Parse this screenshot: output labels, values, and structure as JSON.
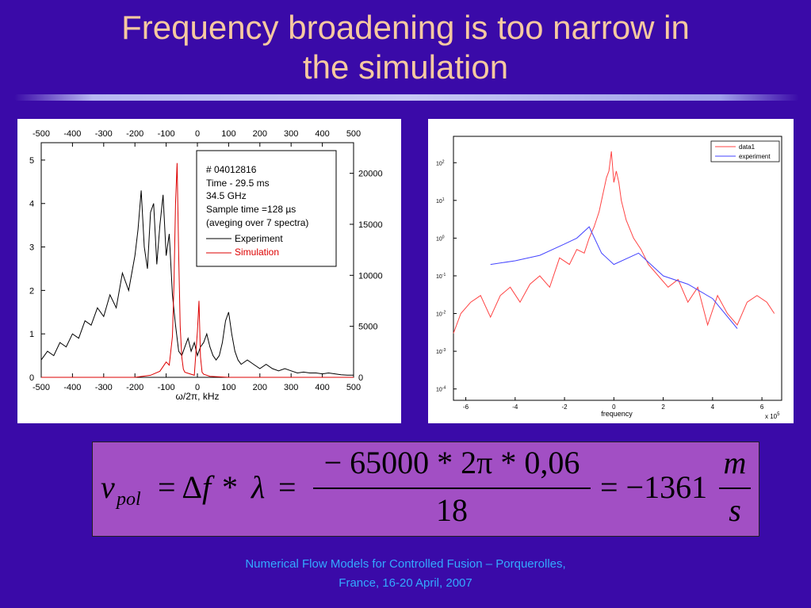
{
  "slide": {
    "title_line1": "Frequency broadening is too narrow in",
    "title_line2": "the simulation",
    "footer_line1": "Numerical Flow Models for Controlled Fusion – Porquerolles,",
    "footer_line2": "France, 16-20 April,  2007",
    "colors": {
      "background": "#3a0aa8",
      "title": "#f7c9a0",
      "footer": "#33aaff",
      "formula_box": "#a24fc4"
    }
  },
  "left_plot": {
    "legend_lines": [
      "# 04012816",
      "Time - 29.5 ms",
      "34.5 GHz",
      "Sample time =128 µs",
      "(aveging over 7 spectra)"
    ],
    "legend_experiment": "Experiment",
    "legend_simulation": "Simulation",
    "xlabel": "ω/2π, kHz"
  },
  "right_plot": {
    "legend_data1": "data1",
    "legend_experiment": "experiment",
    "xlabel": "frequency",
    "x_multiplier": "x 10",
    "x_multiplier_exp": "5"
  },
  "formula": {
    "v": "v",
    "pol": "pol",
    "eq1": "= Δ",
    "f": "f",
    "star1": " * ",
    "lambda": "λ",
    "eq2": "=",
    "numerator": "− 65000 * 2π * 0,06",
    "denominator": "18",
    "eq3": "= −1361",
    "m": "m",
    "s": "s"
  },
  "chart_data": [
    {
      "type": "line",
      "title": "",
      "xlabel": "ω/2π, kHz",
      "ylabel": "",
      "xlim": [
        -500,
        500
      ],
      "ylim_left": [
        0,
        5.4
      ],
      "ylim_right": [
        0,
        23000
      ],
      "x_ticks": [
        -500,
        -400,
        -300,
        -200,
        -100,
        0,
        100,
        200,
        300,
        400,
        500
      ],
      "y_ticks_left": [
        0,
        1,
        2,
        3,
        4,
        5
      ],
      "y_ticks_right": [
        0,
        5000,
        10000,
        15000,
        20000
      ],
      "series": [
        {
          "name": "Experiment",
          "color": "#000000",
          "axis": "left",
          "x": [
            -500,
            -480,
            -460,
            -440,
            -420,
            -400,
            -380,
            -360,
            -340,
            -320,
            -300,
            -280,
            -260,
            -240,
            -220,
            -200,
            -190,
            -180,
            -170,
            -160,
            -150,
            -140,
            -130,
            -120,
            -110,
            -100,
            -90,
            -80,
            -70,
            -60,
            -50,
            -40,
            -30,
            -20,
            -10,
            0,
            10,
            20,
            30,
            40,
            50,
            60,
            70,
            80,
            90,
            100,
            110,
            120,
            130,
            140,
            160,
            180,
            200,
            220,
            240,
            260,
            280,
            300,
            320,
            340,
            360,
            380,
            400,
            420,
            440,
            460,
            480,
            500
          ],
          "values": [
            0.4,
            0.6,
            0.5,
            0.8,
            0.7,
            1.0,
            0.9,
            1.3,
            1.2,
            1.6,
            1.4,
            1.9,
            1.6,
            2.4,
            2.0,
            2.8,
            3.4,
            4.3,
            3.0,
            2.5,
            3.8,
            4.0,
            2.6,
            3.5,
            4.2,
            2.8,
            3.3,
            1.9,
            1.2,
            0.6,
            0.5,
            0.7,
            0.9,
            0.6,
            0.8,
            0.5,
            0.7,
            0.8,
            1.0,
            0.7,
            0.5,
            0.4,
            0.5,
            0.8,
            1.3,
            1.5,
            1.0,
            0.6,
            0.4,
            0.3,
            0.4,
            0.3,
            0.2,
            0.3,
            0.2,
            0.15,
            0.2,
            0.15,
            0.1,
            0.12,
            0.1,
            0.1,
            0.08,
            0.1,
            0.08,
            0.06,
            0.05,
            0.05
          ]
        },
        {
          "name": "Simulation",
          "color": "#dd0000",
          "axis": "right",
          "x": [
            -500,
            -200,
            -150,
            -120,
            -100,
            -90,
            -80,
            -75,
            -70,
            -65,
            -60,
            -55,
            -50,
            -45,
            -40,
            -30,
            -20,
            -10,
            0,
            5,
            10,
            15,
            20,
            40,
            100,
            500
          ],
          "values": [
            0,
            0,
            200,
            600,
            1500,
            1200,
            4000,
            9000,
            17000,
            21000,
            12000,
            5000,
            2000,
            800,
            500,
            400,
            300,
            200,
            4500,
            7500,
            2000,
            500,
            300,
            100,
            0,
            0
          ]
        }
      ]
    },
    {
      "type": "line",
      "title": "",
      "xlabel": "frequency",
      "ylabel": "",
      "scale_y": "log",
      "xlim": [
        -6.5,
        6.8
      ],
      "ylim": [
        5e-05,
        500
      ],
      "x_ticks": [
        -6,
        -4,
        -2,
        0,
        2,
        4,
        6
      ],
      "y_tick_exponents": [
        -4,
        -3,
        -2,
        -1,
        0,
        1,
        2
      ],
      "series": [
        {
          "name": "data1",
          "color": "#ff4444",
          "x": [
            -6.5,
            -6.2,
            -5.8,
            -5.4,
            -5.0,
            -4.6,
            -4.2,
            -3.8,
            -3.4,
            -3.0,
            -2.6,
            -2.2,
            -1.8,
            -1.5,
            -1.2,
            -1.0,
            -0.8,
            -0.6,
            -0.4,
            -0.3,
            -0.2,
            -0.1,
            0.0,
            0.1,
            0.2,
            0.3,
            0.5,
            0.8,
            1.1,
            1.4,
            1.8,
            2.2,
            2.6,
            3.0,
            3.4,
            3.8,
            4.2,
            4.6,
            5.0,
            5.4,
            5.8,
            6.2,
            6.5
          ],
          "values": [
            0.003,
            0.01,
            0.02,
            0.03,
            0.008,
            0.03,
            0.05,
            0.02,
            0.06,
            0.1,
            0.05,
            0.3,
            0.2,
            0.5,
            0.4,
            1.0,
            2.0,
            5.0,
            20.0,
            40.0,
            60.0,
            200.0,
            30.0,
            60.0,
            30.0,
            10.0,
            3.0,
            1.0,
            0.5,
            0.2,
            0.1,
            0.05,
            0.08,
            0.02,
            0.05,
            0.005,
            0.03,
            0.01,
            0.005,
            0.02,
            0.03,
            0.02,
            0.01
          ]
        },
        {
          "name": "experiment",
          "color": "#4444ff",
          "x": [
            -5.0,
            -4.0,
            -3.0,
            -2.0,
            -1.5,
            -1.0,
            -0.5,
            0.0,
            1.0,
            1.5,
            2.0,
            3.0,
            4.0,
            5.0
          ],
          "values": [
            0.2,
            0.25,
            0.35,
            0.7,
            1.0,
            2.0,
            0.4,
            0.2,
            0.4,
            0.2,
            0.1,
            0.06,
            0.025,
            0.004
          ]
        }
      ]
    }
  ]
}
